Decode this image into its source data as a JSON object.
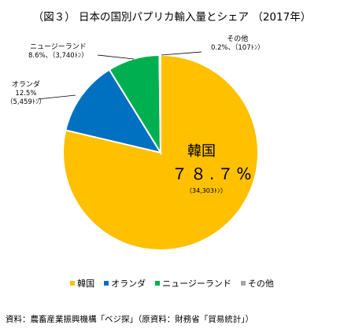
{
  "chart_data": {
    "type": "pie",
    "title": "（図３） 日本の国別パプリカ輸入量とシェア （2017年）",
    "slices": [
      {
        "name": "韓国",
        "percent": "７８.７%",
        "share": 78.7,
        "amount": "（34,303ﾄﾝ）",
        "color": "#FFC000"
      },
      {
        "name": "オランダ",
        "percent": "12.5%",
        "share": 12.5,
        "amount": "（5,459ﾄﾝ）",
        "color": "#0070C0"
      },
      {
        "name": "ニュージーランド",
        "percent": "8.6%",
        "share": 8.6,
        "amount": "（3,740ﾄﾝ）",
        "color": "#00B050"
      },
      {
        "name": "その他",
        "percent": "0.2%",
        "share": 0.2,
        "amount": "（107ﾄﾝ）",
        "color": "#A5A5A5"
      }
    ],
    "legend_position": "bottom",
    "source": "資料：農畜産業振興機構「ベジ探」（原資料：財務省「貿易統計」）"
  }
}
